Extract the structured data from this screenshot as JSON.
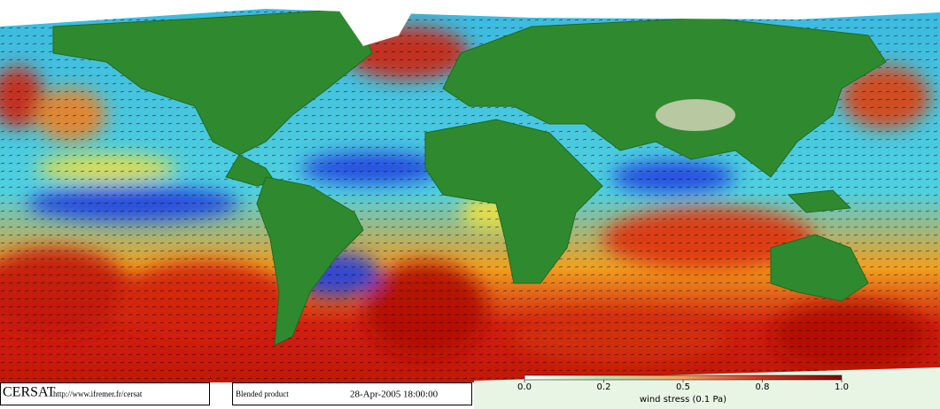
{
  "footer": {
    "logo": "CERSAT",
    "url": "http://www.ifremer.fr/cersat",
    "product": "Blended product",
    "date": "28-Apr-2005 18:00:00"
  },
  "colorbar": {
    "ticks": [
      {
        "value": 0,
        "label": "0.0"
      },
      0.2,
      0.5,
      0.8,
      {
        "value": 1,
        "label": "1.0"
      }
    ],
    "label": "wind stress (0.1 Pa)"
  }
}
